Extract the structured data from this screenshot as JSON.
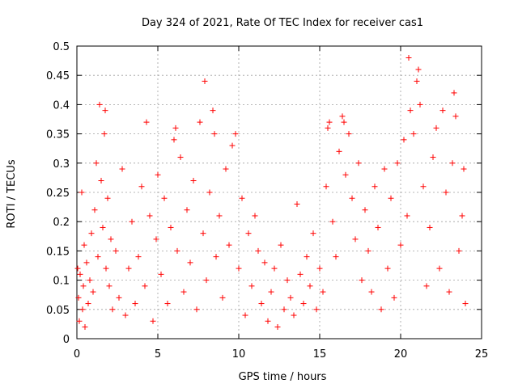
{
  "chart_data": {
    "type": "scatter",
    "title": "Day 324 of 2021, Rate Of TEC Index for receiver cas1",
    "xlabel": "GPS time / hours",
    "ylabel": "ROTI / TECUs",
    "xlim": [
      0,
      25
    ],
    "ylim": [
      0,
      0.5
    ],
    "xticks": [
      "0",
      "5",
      "10",
      "15",
      "20",
      "25"
    ],
    "yticks": [
      "0",
      "0.05",
      "0.1",
      "0.15",
      "0.2",
      "0.25",
      "0.3",
      "0.35",
      "0.4",
      "0.45",
      "0.5"
    ],
    "grid": true,
    "marker": "+",
    "series_color": "#ff0000",
    "series": [
      {
        "values": [
          [
            0.05,
            0.12
          ],
          [
            0.1,
            0.07
          ],
          [
            0.15,
            0.03
          ],
          [
            0.2,
            0.11
          ],
          [
            0.3,
            0.25
          ],
          [
            0.35,
            0.05
          ],
          [
            0.4,
            0.09
          ],
          [
            0.45,
            0.16
          ],
          [
            0.5,
            0.02
          ],
          [
            0.6,
            0.13
          ],
          [
            0.7,
            0.06
          ],
          [
            0.8,
            0.1
          ],
          [
            0.9,
            0.18
          ],
          [
            1.0,
            0.08
          ],
          [
            1.1,
            0.22
          ],
          [
            1.2,
            0.3
          ],
          [
            1.3,
            0.14
          ],
          [
            1.4,
            0.4
          ],
          [
            1.5,
            0.27
          ],
          [
            1.6,
            0.19
          ],
          [
            1.7,
            0.35
          ],
          [
            1.75,
            0.39
          ],
          [
            1.8,
            0.12
          ],
          [
            1.9,
            0.24
          ],
          [
            2.0,
            0.09
          ],
          [
            2.1,
            0.17
          ],
          [
            2.2,
            0.05
          ],
          [
            2.4,
            0.15
          ],
          [
            2.6,
            0.07
          ],
          [
            2.8,
            0.29
          ],
          [
            3.0,
            0.04
          ],
          [
            3.2,
            0.12
          ],
          [
            3.4,
            0.2
          ],
          [
            3.6,
            0.06
          ],
          [
            3.8,
            0.14
          ],
          [
            4.0,
            0.26
          ],
          [
            4.2,
            0.09
          ],
          [
            4.3,
            0.37
          ],
          [
            4.5,
            0.21
          ],
          [
            4.7,
            0.03
          ],
          [
            4.9,
            0.17
          ],
          [
            5.0,
            0.28
          ],
          [
            5.2,
            0.11
          ],
          [
            5.4,
            0.24
          ],
          [
            5.6,
            0.06
          ],
          [
            5.8,
            0.19
          ],
          [
            6.0,
            0.34
          ],
          [
            6.1,
            0.36
          ],
          [
            6.2,
            0.15
          ],
          [
            6.4,
            0.31
          ],
          [
            6.6,
            0.08
          ],
          [
            6.8,
            0.22
          ],
          [
            7.0,
            0.13
          ],
          [
            7.2,
            0.27
          ],
          [
            7.4,
            0.05
          ],
          [
            7.6,
            0.37
          ],
          [
            7.8,
            0.18
          ],
          [
            7.9,
            0.44
          ],
          [
            8.0,
            0.1
          ],
          [
            8.2,
            0.25
          ],
          [
            8.4,
            0.39
          ],
          [
            8.5,
            0.35
          ],
          [
            8.6,
            0.14
          ],
          [
            8.8,
            0.21
          ],
          [
            9.0,
            0.07
          ],
          [
            9.2,
            0.29
          ],
          [
            9.4,
            0.16
          ],
          [
            9.6,
            0.33
          ],
          [
            9.8,
            0.35
          ],
          [
            10.0,
            0.12
          ],
          [
            10.2,
            0.24
          ],
          [
            10.4,
            0.04
          ],
          [
            10.6,
            0.18
          ],
          [
            10.8,
            0.09
          ],
          [
            11.0,
            0.21
          ],
          [
            11.2,
            0.15
          ],
          [
            11.4,
            0.06
          ],
          [
            11.6,
            0.13
          ],
          [
            11.8,
            0.03
          ],
          [
            12.0,
            0.08
          ],
          [
            12.2,
            0.12
          ],
          [
            12.4,
            0.02
          ],
          [
            12.6,
            0.16
          ],
          [
            12.8,
            0.05
          ],
          [
            13.0,
            0.1
          ],
          [
            13.2,
            0.07
          ],
          [
            13.4,
            0.04
          ],
          [
            13.6,
            0.23
          ],
          [
            13.8,
            0.11
          ],
          [
            14.0,
            0.06
          ],
          [
            14.2,
            0.14
          ],
          [
            14.4,
            0.09
          ],
          [
            14.6,
            0.18
          ],
          [
            14.8,
            0.05
          ],
          [
            15.0,
            0.12
          ],
          [
            15.2,
            0.08
          ],
          [
            15.4,
            0.26
          ],
          [
            15.5,
            0.36
          ],
          [
            15.6,
            0.37
          ],
          [
            15.8,
            0.2
          ],
          [
            16.0,
            0.14
          ],
          [
            16.2,
            0.32
          ],
          [
            16.4,
            0.38
          ],
          [
            16.5,
            0.37
          ],
          [
            16.6,
            0.28
          ],
          [
            16.8,
            0.35
          ],
          [
            17.0,
            0.24
          ],
          [
            17.2,
            0.17
          ],
          [
            17.4,
            0.3
          ],
          [
            17.6,
            0.1
          ],
          [
            17.8,
            0.22
          ],
          [
            18.0,
            0.15
          ],
          [
            18.2,
            0.08
          ],
          [
            18.4,
            0.26
          ],
          [
            18.6,
            0.19
          ],
          [
            18.8,
            0.05
          ],
          [
            19.0,
            0.29
          ],
          [
            19.2,
            0.12
          ],
          [
            19.4,
            0.24
          ],
          [
            19.6,
            0.07
          ],
          [
            19.8,
            0.3
          ],
          [
            20.0,
            0.16
          ],
          [
            20.2,
            0.34
          ],
          [
            20.4,
            0.21
          ],
          [
            20.5,
            0.48
          ],
          [
            20.6,
            0.39
          ],
          [
            20.8,
            0.35
          ],
          [
            21.0,
            0.44
          ],
          [
            21.1,
            0.46
          ],
          [
            21.2,
            0.4
          ],
          [
            21.4,
            0.26
          ],
          [
            21.6,
            0.09
          ],
          [
            21.8,
            0.19
          ],
          [
            22.0,
            0.31
          ],
          [
            22.2,
            0.36
          ],
          [
            22.4,
            0.12
          ],
          [
            22.6,
            0.39
          ],
          [
            22.8,
            0.25
          ],
          [
            23.0,
            0.08
          ],
          [
            23.2,
            0.3
          ],
          [
            23.3,
            0.42
          ],
          [
            23.4,
            0.38
          ],
          [
            23.6,
            0.15
          ],
          [
            23.8,
            0.21
          ],
          [
            23.9,
            0.29
          ],
          [
            24.0,
            0.06
          ]
        ]
      }
    ]
  }
}
